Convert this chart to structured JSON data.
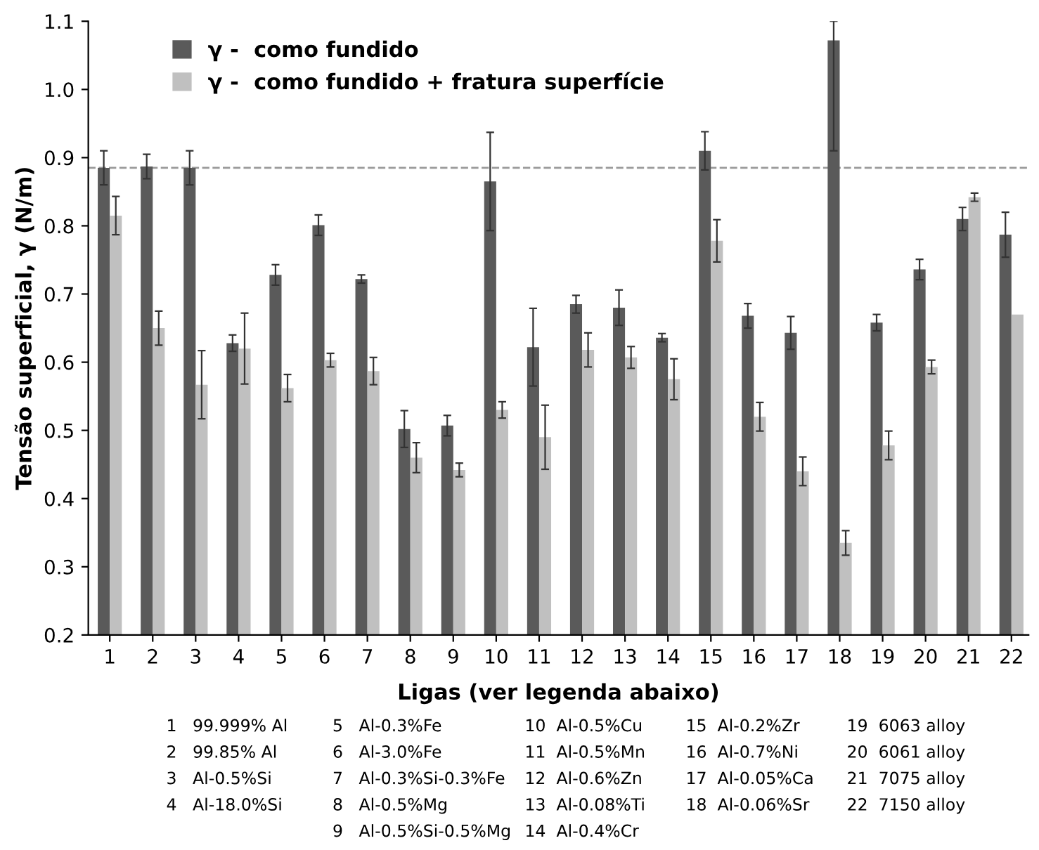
{
  "chart_data": {
    "type": "bar",
    "xlabel": "Ligas (ver legenda abaixo)",
    "ylabel": "Tensão superficial, γ (N/m)",
    "categories": [
      "1",
      "2",
      "3",
      "4",
      "5",
      "6",
      "7",
      "8",
      "9",
      "10",
      "11",
      "12",
      "13",
      "14",
      "15",
      "16",
      "17",
      "18",
      "19",
      "20",
      "21",
      "22"
    ],
    "series": [
      {
        "name": "γ -  como fundido",
        "color": "#5a5a5a",
        "values": [
          0.885,
          0.887,
          0.885,
          0.628,
          0.728,
          0.801,
          0.722,
          0.502,
          0.507,
          0.865,
          0.622,
          0.685,
          0.68,
          0.636,
          0.91,
          0.668,
          0.643,
          1.072,
          0.658,
          0.736,
          0.81,
          0.787
        ],
        "errors": [
          0.025,
          0.018,
          0.025,
          0.012,
          0.015,
          0.015,
          0.006,
          0.027,
          0.015,
          0.072,
          0.057,
          0.013,
          0.026,
          0.006,
          0.028,
          0.018,
          0.024,
          [
            0.91,
            1.1
          ],
          0.012,
          0.015,
          0.017,
          0.033
        ]
      },
      {
        "name": "γ -  como fundido + fratura superfície",
        "color": "#c0c0c0",
        "values": [
          0.815,
          0.65,
          0.567,
          0.62,
          0.562,
          0.603,
          0.587,
          0.46,
          0.442,
          0.53,
          0.49,
          0.618,
          0.607,
          0.575,
          0.778,
          0.52,
          0.44,
          0.335,
          0.478,
          0.593,
          0.842,
          0.67
        ],
        "errors": [
          0.028,
          0.025,
          0.05,
          0.052,
          0.02,
          0.01,
          0.02,
          0.022,
          0.01,
          0.012,
          0.047,
          0.025,
          0.016,
          0.03,
          0.031,
          0.021,
          0.021,
          0.018,
          0.021,
          0.01,
          0.006,
          null
        ]
      }
    ],
    "ylim": [
      0.2,
      1.1
    ],
    "yticks": [
      0.2,
      0.3,
      0.4,
      0.5,
      0.6,
      0.7,
      0.8,
      0.9,
      {
        "value": 1.0,
        "label": "1.0"
      },
      1.1
    ],
    "ref_lines": [
      {
        "axis": "y",
        "value": 0.885,
        "color": "#999999",
        "line_style": "dashed"
      }
    ],
    "grid": false,
    "legend": "top left",
    "annotations": [
      "1   99.999% Al",
      "2   99.85% Al",
      "3   Al-0.5%Si",
      "4   Al-18.0%Si",
      "5   Al-0.3%Fe",
      "6   Al-3.0%Fe",
      "7   Al-0.3%Si-0.3%Fe",
      "8   Al-0.5%Mg",
      "9   Al-0.5%Si-0.5%Mg",
      "10  Al-0.5%Cu",
      "11  Al-0.5%Mn",
      "12  Al-0.6%Zn",
      "13  Al-0.08%Ti",
      "14  Al-0.4%Cr",
      "15  Al-0.2%Zr",
      "16  Al-0.7%Ni",
      "17  Al-0.05%Ca",
      "18  Al-0.06%Sr",
      "19  6063 alloy",
      "20  6061 alloy",
      "21  7075 alloy",
      "22  7150 alloy"
    ]
  }
}
